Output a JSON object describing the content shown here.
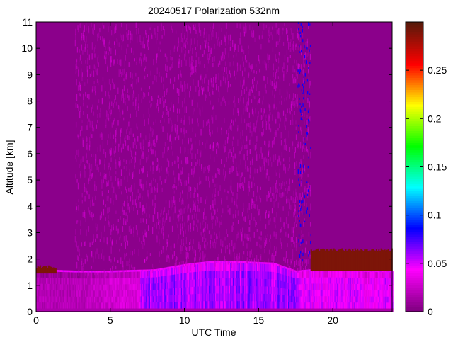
{
  "chart_data": {
    "type": "heatmap",
    "title": "20240517 Polarization 532nm",
    "xlabel": "UTC Time",
    "ylabel": "Altitude [km]",
    "xlim": [
      0,
      24
    ],
    "ylim": [
      0,
      11
    ],
    "x_ticks": [
      0,
      5,
      10,
      15,
      20
    ],
    "y_ticks": [
      0,
      1,
      2,
      3,
      4,
      5,
      6,
      7,
      8,
      9,
      10,
      11
    ],
    "colorbar": {
      "range": [
        0,
        0.3
      ],
      "ticks": [
        0,
        0.05,
        0.1,
        0.15,
        0.2,
        0.25
      ],
      "tick_labels": [
        "0",
        "0.05",
        "0.1",
        "0.15",
        "0.2",
        "0.25"
      ],
      "colormap": [
        "#800080",
        "#ff00ff",
        "#0000ff",
        "#00ffff",
        "#00ff00",
        "#ffff00",
        "#ff0000",
        "#5a1a0a"
      ]
    },
    "features": {
      "background_color": "#8b008b",
      "boundary_layer_top_km": [
        {
          "t": 0,
          "h": 1.55
        },
        {
          "t": 2.6,
          "h": 1.5
        },
        {
          "t": 5,
          "h": 1.5
        },
        {
          "t": 8,
          "h": 1.55
        },
        {
          "t": 10,
          "h": 1.75
        },
        {
          "t": 11.5,
          "h": 1.85
        },
        {
          "t": 14,
          "h": 1.85
        },
        {
          "t": 16,
          "h": 1.8
        },
        {
          "t": 17.5,
          "h": 1.5
        },
        {
          "t": 18.5,
          "h": 1.55
        },
        {
          "t": 20,
          "h": 1.55
        },
        {
          "t": 24,
          "h": 1.5
        }
      ],
      "noisy_period_utc": [
        2.6,
        18.5
      ],
      "high_depol_layer": [
        {
          "t0": 0,
          "t1": 1.3,
          "h0": 1.45,
          "h1": 1.7
        },
        {
          "t0": 18.5,
          "t1": 24,
          "h0": 1.55,
          "h1": 2.35
        }
      ]
    }
  }
}
